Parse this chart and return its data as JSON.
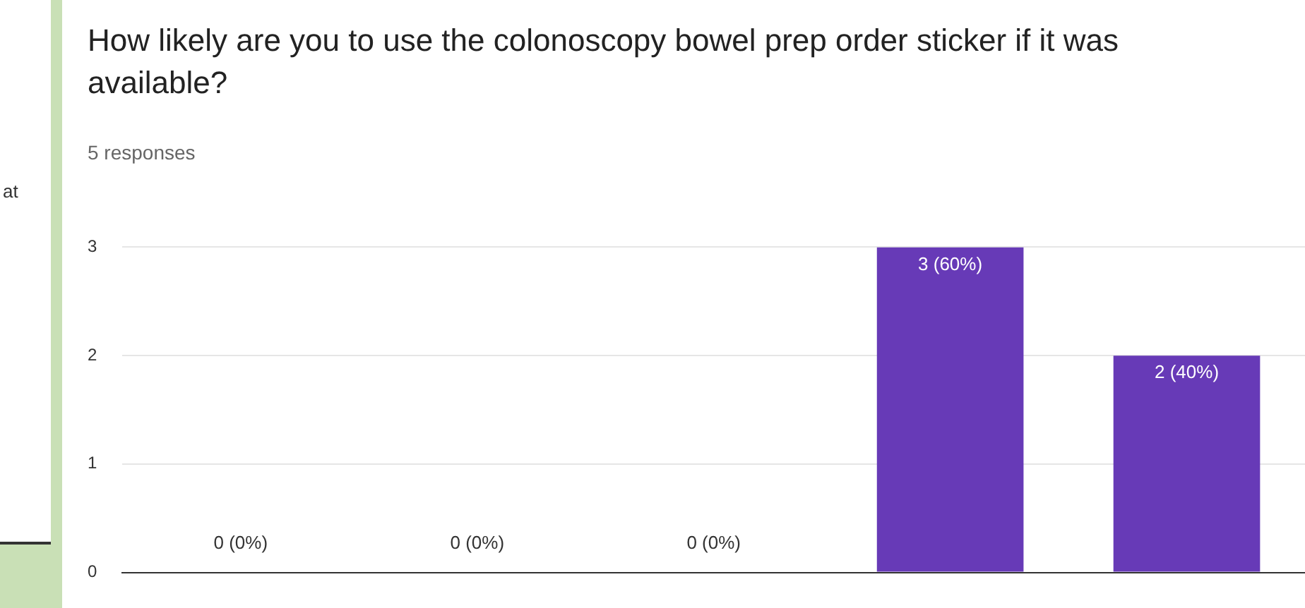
{
  "chart_data": {
    "type": "bar",
    "title": "How likely are you to use the colonoscopy bowel prep order sticker if it was available?",
    "subtitle": "5 responses",
    "categories": [
      null,
      null,
      null,
      null,
      null
    ],
    "values": [
      0,
      0,
      0,
      3,
      2
    ],
    "value_labels": [
      "0 (0%)",
      "0 (0%)",
      "0 (0%)",
      "3 (60%)",
      "2 (40%)"
    ],
    "color": "#673ab7",
    "ylim": [
      0,
      3
    ],
    "yticks": [
      0,
      1,
      2,
      3
    ],
    "grid": "y",
    "legend": false,
    "annotations": [
      "at"
    ]
  }
}
